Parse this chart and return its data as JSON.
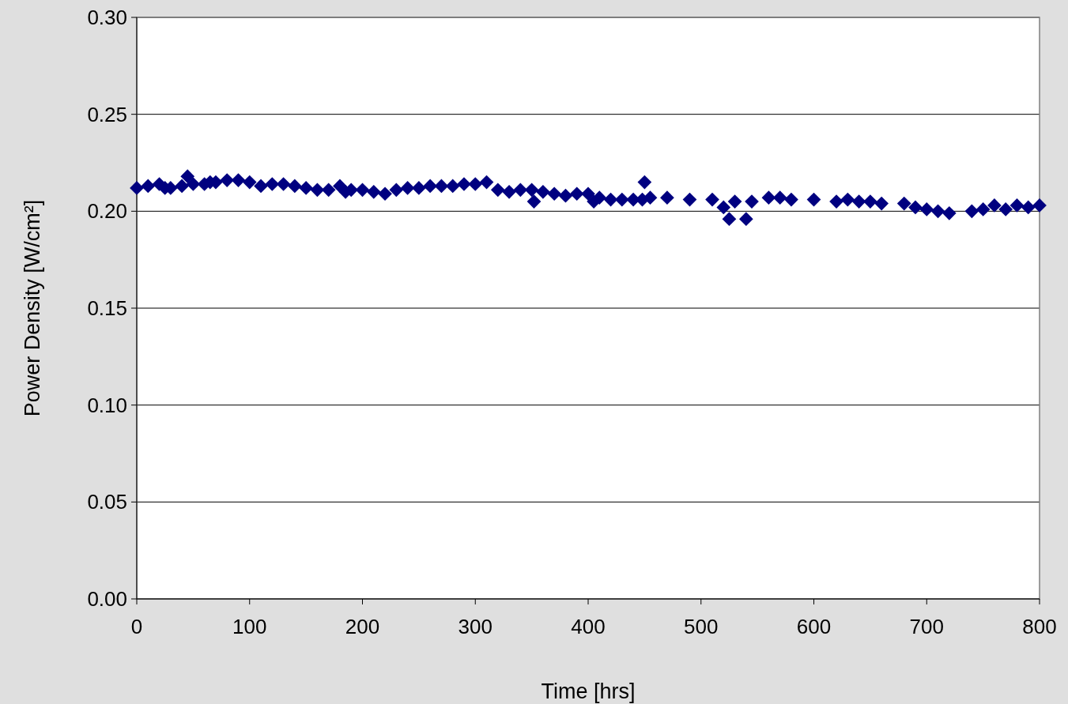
{
  "chart_data": {
    "type": "scatter",
    "xlabel": "Time [hrs]",
    "ylabel": "Power Density [W/cm²]",
    "xlim": [
      0,
      800
    ],
    "xticks": [
      0,
      100,
      200,
      300,
      400,
      500,
      600,
      700,
      800
    ],
    "ylim": [
      0,
      0.3
    ],
    "yticks": [
      {
        "value": 0,
        "label": "0.00"
      },
      {
        "value": 0.05,
        "label": "0.05"
      },
      {
        "value": 0.1,
        "label": "0.10"
      },
      {
        "value": 0.15,
        "label": "0.15"
      },
      {
        "value": 0.2,
        "label": "0.20"
      },
      {
        "value": 0.25,
        "label": "0.25"
      },
      {
        "value": 0.3,
        "label": "0.30"
      }
    ],
    "grid": "y",
    "marker": "diamond",
    "series": [
      {
        "color": "#000080",
        "x": [
          0,
          10,
          20,
          25,
          30,
          40,
          45,
          50,
          60,
          65,
          70,
          80,
          90,
          100,
          110,
          120,
          130,
          140,
          150,
          160,
          170,
          180,
          185,
          190,
          200,
          210,
          220,
          230,
          240,
          250,
          260,
          270,
          280,
          290,
          300,
          310,
          320,
          330,
          340,
          350,
          352,
          360,
          370,
          380,
          390,
          400,
          405,
          410,
          420,
          430,
          440,
          448,
          450,
          455,
          470,
          490,
          510,
          520,
          525,
          530,
          540,
          545,
          560,
          570,
          580,
          600,
          620,
          630,
          640,
          650,
          660,
          680,
          690,
          700,
          710,
          720,
          740,
          750,
          760,
          770,
          780,
          790,
          800
        ],
        "values": [
          0.212,
          0.213,
          0.214,
          0.212,
          0.212,
          0.213,
          0.218,
          0.214,
          0.214,
          0.215,
          0.215,
          0.216,
          0.216,
          0.215,
          0.213,
          0.214,
          0.214,
          0.213,
          0.212,
          0.211,
          0.211,
          0.213,
          0.21,
          0.211,
          0.211,
          0.21,
          0.209,
          0.211,
          0.212,
          0.212,
          0.213,
          0.213,
          0.213,
          0.214,
          0.214,
          0.215,
          0.211,
          0.21,
          0.211,
          0.211,
          0.205,
          0.21,
          0.209,
          0.208,
          0.209,
          0.209,
          0.205,
          0.207,
          0.206,
          0.206,
          0.206,
          0.206,
          0.215,
          0.207,
          0.207,
          0.206,
          0.206,
          0.202,
          0.196,
          0.205,
          0.196,
          0.205,
          0.207,
          0.207,
          0.206,
          0.206,
          0.205,
          0.206,
          0.205,
          0.205,
          0.204,
          0.204,
          0.202,
          0.201,
          0.2,
          0.199,
          0.2,
          0.201,
          0.203,
          0.201,
          0.203,
          0.202,
          0.203
        ]
      }
    ]
  }
}
